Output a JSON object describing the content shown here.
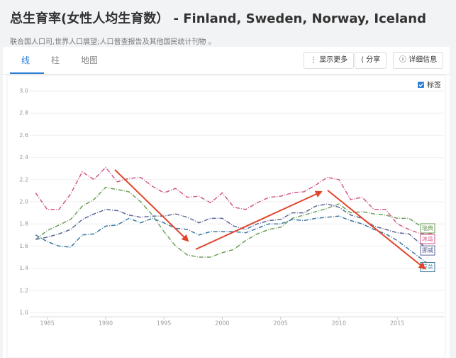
{
  "page": {
    "title": "总生育率(女性人均生育数） - Finland, Sweden, Norway, Iceland",
    "source": "联合国人口司,世界人口展望;人口普查报告及其他国民统计刊物 。",
    "tabs": [
      "线",
      "柱",
      "地图"
    ],
    "buttons": [
      "显示更多",
      "分享",
      "详细信息"
    ],
    "checkbox": "标签"
  },
  "chart_data": {
    "type": "line",
    "x": [
      1984,
      1985,
      1986,
      1987,
      1988,
      1989,
      1990,
      1991,
      1992,
      1993,
      1994,
      1995,
      1996,
      1997,
      1998,
      1999,
      2000,
      2001,
      2002,
      2003,
      2004,
      2005,
      2006,
      2007,
      2008,
      2009,
      2010,
      2011,
      2012,
      2013,
      2014,
      2015,
      2016,
      2017,
      2018
    ],
    "xlim": [
      1983.5,
      2019
    ],
    "xticks": [
      1985,
      1990,
      1995,
      2000,
      2005,
      2010,
      2015
    ],
    "ylim": [
      1.0,
      3.0
    ],
    "yticks": [
      {
        "value": 1.0,
        "label": "1.0"
      },
      1.2,
      1.4,
      1.6,
      1.8,
      {
        "value": 2.0,
        "label": "2.0"
      },
      2.2,
      2.4,
      2.6,
      2.8,
      {
        "value": 3.0,
        "label": "3.0"
      }
    ],
    "grid": true,
    "series": [
      {
        "name": "瑞典",
        "color": "#6f9f5c",
        "values": [
          1.66,
          1.74,
          1.79,
          1.84,
          1.96,
          2.02,
          2.13,
          2.11,
          2.09,
          2.0,
          1.88,
          1.73,
          1.6,
          1.52,
          1.5,
          1.5,
          1.54,
          1.57,
          1.65,
          1.71,
          1.75,
          1.77,
          1.85,
          1.88,
          1.91,
          1.94,
          1.98,
          1.9,
          1.91,
          1.89,
          1.88,
          1.85,
          1.85,
          1.78,
          1.76
        ]
      },
      {
        "name": "冰岛",
        "color": "#d0588a",
        "values": [
          2.08,
          1.93,
          1.93,
          2.07,
          2.27,
          2.2,
          2.31,
          2.18,
          2.21,
          2.22,
          2.14,
          2.08,
          2.12,
          2.04,
          2.05,
          1.99,
          2.08,
          1.95,
          1.93,
          1.99,
          2.04,
          2.05,
          2.08,
          2.09,
          2.15,
          2.22,
          2.2,
          2.02,
          2.04,
          1.93,
          1.93,
          1.8,
          1.75,
          1.71,
          1.71
        ]
      },
      {
        "name": "挪威",
        "color": "#5a6796",
        "values": [
          1.66,
          1.68,
          1.71,
          1.75,
          1.84,
          1.89,
          1.93,
          1.92,
          1.88,
          1.86,
          1.87,
          1.87,
          1.89,
          1.86,
          1.81,
          1.85,
          1.85,
          1.78,
          1.75,
          1.8,
          1.83,
          1.84,
          1.9,
          1.9,
          1.96,
          1.98,
          1.95,
          1.88,
          1.85,
          1.78,
          1.75,
          1.72,
          1.71,
          1.62,
          1.56
        ]
      },
      {
        "name": "芬兰",
        "color": "#3b78a0",
        "values": [
          1.7,
          1.64,
          1.6,
          1.59,
          1.7,
          1.71,
          1.78,
          1.79,
          1.85,
          1.81,
          1.85,
          1.81,
          1.76,
          1.75,
          1.7,
          1.73,
          1.73,
          1.73,
          1.72,
          1.76,
          1.8,
          1.8,
          1.84,
          1.83,
          1.85,
          1.86,
          1.87,
          1.83,
          1.8,
          1.75,
          1.71,
          1.65,
          1.57,
          1.49,
          1.41
        ]
      }
    ]
  }
}
